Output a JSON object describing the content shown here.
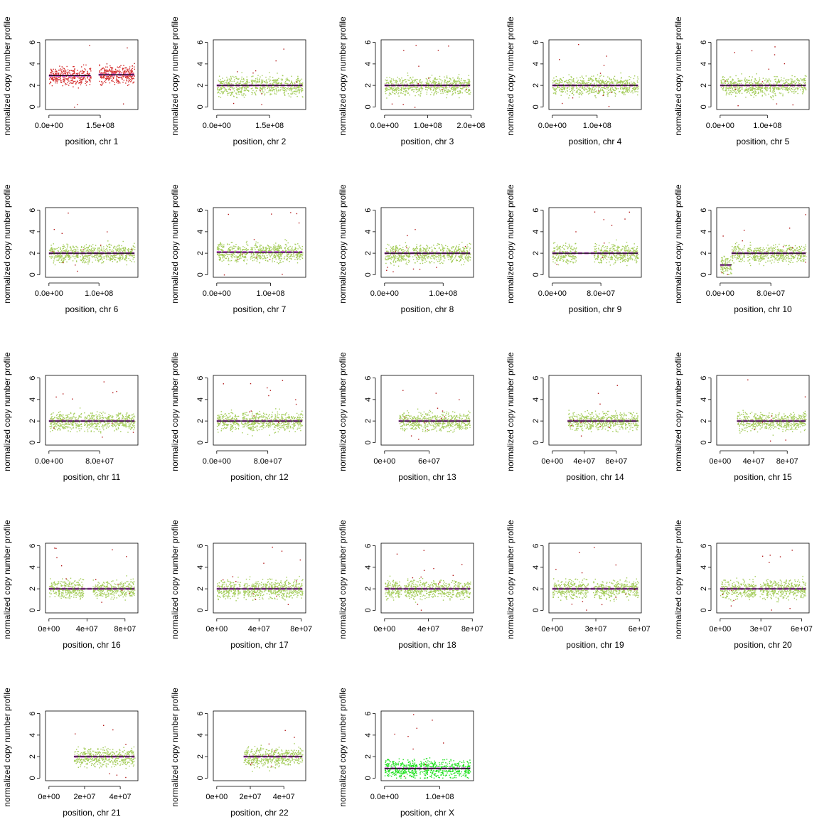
{
  "chart_data": [
    {
      "type": "scatter",
      "chromosome": "1",
      "xlabel": "position, chr 1",
      "ylabel": "normalized copy number profile",
      "xticks": [
        "0.0e+00",
        "1.5e+08"
      ],
      "xtick_values": [
        0,
        150000000
      ],
      "xlim": [
        0,
        250000000
      ],
      "ylim": [
        0,
        6
      ],
      "yticks": [
        "0",
        "2",
        "4",
        "6"
      ],
      "point_color": "#d42a2a",
      "segments": [
        {
          "start": 0,
          "end": 122000000,
          "copy_number": 2.9
        },
        {
          "start": 145000000,
          "end": 249000000,
          "copy_number": 3.0
        }
      ],
      "gaps": [
        [
          122000000,
          145000000
        ]
      ]
    },
    {
      "type": "scatter",
      "chromosome": "2",
      "xlabel": "position, chr 2",
      "ylabel": "normalized copy number profile",
      "xticks": [
        "0.0e+00",
        "1.5e+08"
      ],
      "xtick_values": [
        0,
        150000000
      ],
      "xlim": [
        0,
        243000000
      ],
      "ylim": [
        0,
        6
      ],
      "yticks": [
        "0",
        "2",
        "4",
        "6"
      ],
      "point_color": "#a4cc5a",
      "segments": [
        {
          "start": 0,
          "end": 243000000,
          "copy_number": 2.0
        }
      ],
      "gaps": [
        [
          91000000,
          96000000
        ]
      ]
    },
    {
      "type": "scatter",
      "chromosome": "3",
      "xlabel": "position, chr 3",
      "ylabel": "normalized copy number profile",
      "xticks": [
        "0.0e+00",
        "1.0e+08",
        "2.0e+08"
      ],
      "xtick_values": [
        0,
        100000000,
        200000000
      ],
      "xlim": [
        0,
        198000000
      ],
      "ylim": [
        0,
        6
      ],
      "yticks": [
        "0",
        "2",
        "4",
        "6"
      ],
      "point_color": "#a4cc5a",
      "segments": [
        {
          "start": 0,
          "end": 198000000,
          "copy_number": 2.0
        }
      ],
      "gaps": [
        [
          88000000,
          94000000
        ]
      ]
    },
    {
      "type": "scatter",
      "chromosome": "4",
      "xlabel": "position, chr 4",
      "ylabel": "normalized copy number profile",
      "xticks": [
        "0.0e+00",
        "1.0e+08"
      ],
      "xtick_values": [
        0,
        100000000
      ],
      "xlim": [
        0,
        191000000
      ],
      "ylim": [
        0,
        6
      ],
      "yticks": [
        "0",
        "2",
        "4",
        "6"
      ],
      "point_color": "#a4cc5a",
      "segments": [
        {
          "start": 0,
          "end": 191000000,
          "copy_number": 2.0
        }
      ],
      "gaps": [
        [
          48000000,
          52000000
        ]
      ]
    },
    {
      "type": "scatter",
      "chromosome": "5",
      "xlabel": "position, chr 5",
      "ylabel": "normalized copy number profile",
      "xticks": [
        "0.0e+00",
        "1.0e+08"
      ],
      "xtick_values": [
        0,
        100000000
      ],
      "xlim": [
        0,
        181000000
      ],
      "ylim": [
        0,
        6
      ],
      "yticks": [
        "0",
        "2",
        "4",
        "6"
      ],
      "point_color": "#a4cc5a",
      "segments": [
        {
          "start": 0,
          "end": 181000000,
          "copy_number": 2.0
        }
      ],
      "gaps": [
        [
          46000000,
          50000000
        ]
      ]
    },
    {
      "type": "scatter",
      "chromosome": "6",
      "xlabel": "position, chr 6",
      "ylabel": "normalized copy number profile",
      "xticks": [
        "0.0e+00",
        "1.0e+08"
      ],
      "xtick_values": [
        0,
        100000000
      ],
      "xlim": [
        0,
        171000000
      ],
      "ylim": [
        0,
        6
      ],
      "yticks": [
        "0",
        "2",
        "4",
        "6"
      ],
      "point_color": "#a4cc5a",
      "segments": [
        {
          "start": 0,
          "end": 171000000,
          "copy_number": 2.0
        }
      ],
      "gaps": [
        [
          58000000,
          62000000
        ]
      ]
    },
    {
      "type": "scatter",
      "chromosome": "7",
      "xlabel": "position, chr 7",
      "ylabel": "normalized copy number profile",
      "xticks": [
        "0.0e+00",
        "1.0e+08"
      ],
      "xtick_values": [
        0,
        100000000
      ],
      "xlim": [
        0,
        159000000
      ],
      "ylim": [
        0,
        6
      ],
      "yticks": [
        "0",
        "2",
        "4",
        "6"
      ],
      "point_color": "#a4cc5a",
      "segments": [
        {
          "start": 0,
          "end": 159000000,
          "copy_number": 2.1
        }
      ],
      "gaps": [
        [
          58000000,
          62000000
        ]
      ]
    },
    {
      "type": "scatter",
      "chromosome": "8",
      "xlabel": "position, chr 8",
      "ylabel": "normalized copy number profile",
      "xticks": [
        "0.0e+00",
        "1.0e+08"
      ],
      "xtick_values": [
        0,
        100000000
      ],
      "xlim": [
        0,
        146000000
      ],
      "ylim": [
        0,
        6
      ],
      "yticks": [
        "0",
        "2",
        "4",
        "6"
      ],
      "point_color": "#a4cc5a",
      "segments": [
        {
          "start": 0,
          "end": 146000000,
          "copy_number": 2.0
        }
      ],
      "gaps": [
        [
          43000000,
          47000000
        ]
      ]
    },
    {
      "type": "scatter",
      "chromosome": "9",
      "xlabel": "position, chr 9",
      "ylabel": "normalized copy number profile",
      "xticks": [
        "0.0e+00",
        "8.0e+07"
      ],
      "xtick_values": [
        0,
        80000000
      ],
      "xlim": [
        0,
        141000000
      ],
      "ylim": [
        0,
        6
      ],
      "yticks": [
        "0",
        "2",
        "4",
        "6"
      ],
      "point_color": "#a4cc5a",
      "segments": [
        {
          "start": 0,
          "end": 141000000,
          "copy_number": 2.0
        }
      ],
      "gaps": [
        [
          39000000,
          68000000
        ]
      ]
    },
    {
      "type": "scatter",
      "chromosome": "10",
      "xlabel": "position, chr 10",
      "ylabel": "normalized copy number profile",
      "xticks": [
        "0.0e+00",
        "8.0e+07"
      ],
      "xtick_values": [
        0,
        80000000
      ],
      "xlim": [
        0,
        135000000
      ],
      "ylim": [
        0,
        6
      ],
      "yticks": [
        "0",
        "2",
        "4",
        "6"
      ],
      "point_color": "#a4cc5a",
      "segments": [
        {
          "start": 0,
          "end": 18000000,
          "copy_number": 0.9
        },
        {
          "start": 18000000,
          "end": 135000000,
          "copy_number": 2.0
        }
      ],
      "gaps": [
        [
          38000000,
          42000000
        ]
      ]
    },
    {
      "type": "scatter",
      "chromosome": "11",
      "xlabel": "position, chr 11",
      "ylabel": "normalized copy number profile",
      "xticks": [
        "0.0e+00",
        "8.0e+07"
      ],
      "xtick_values": [
        0,
        80000000
      ],
      "xlim": [
        0,
        135000000
      ],
      "ylim": [
        0,
        6
      ],
      "yticks": [
        "0",
        "2",
        "4",
        "6"
      ],
      "point_color": "#a4cc5a",
      "segments": [
        {
          "start": 0,
          "end": 135000000,
          "copy_number": 2.0
        }
      ],
      "gaps": [
        [
          51000000,
          55000000
        ]
      ]
    },
    {
      "type": "scatter",
      "chromosome": "12",
      "xlabel": "position, chr 12",
      "ylabel": "normalized copy number profile",
      "xticks": [
        "0.0e+00",
        "8.0e+07"
      ],
      "xtick_values": [
        0,
        80000000
      ],
      "xlim": [
        0,
        134000000
      ],
      "ylim": [
        0,
        6
      ],
      "yticks": [
        "0",
        "2",
        "4",
        "6"
      ],
      "point_color": "#a4cc5a",
      "segments": [
        {
          "start": 0,
          "end": 134000000,
          "copy_number": 2.0
        }
      ],
      "gaps": [
        [
          34000000,
          38000000
        ]
      ]
    },
    {
      "type": "scatter",
      "chromosome": "13",
      "xlabel": "position, chr 13",
      "ylabel": "normalized copy number profile",
      "xticks": [
        "0e+00",
        "6e+07"
      ],
      "xtick_values": [
        0,
        60000000
      ],
      "xlim": [
        0,
        115000000
      ],
      "ylim": [
        0,
        6
      ],
      "yticks": [
        "0",
        "2",
        "4",
        "6"
      ],
      "point_color": "#a4cc5a",
      "segments": [
        {
          "start": 19000000,
          "end": 115000000,
          "copy_number": 2.0
        }
      ],
      "gaps": [
        [
          0,
          19000000
        ]
      ]
    },
    {
      "type": "scatter",
      "chromosome": "14",
      "xlabel": "position, chr 14",
      "ylabel": "normalized copy number profile",
      "xticks": [
        "0e+00",
        "4e+07",
        "8e+07"
      ],
      "xtick_values": [
        0,
        40000000,
        80000000
      ],
      "xlim": [
        0,
        107000000
      ],
      "ylim": [
        0,
        6
      ],
      "yticks": [
        "0",
        "2",
        "4",
        "6"
      ],
      "point_color": "#a4cc5a",
      "segments": [
        {
          "start": 19000000,
          "end": 107000000,
          "copy_number": 2.0
        }
      ],
      "gaps": [
        [
          0,
          19000000
        ]
      ]
    },
    {
      "type": "scatter",
      "chromosome": "15",
      "xlabel": "position, chr 15",
      "ylabel": "normalized copy number profile",
      "xticks": [
        "0e+00",
        "4e+07",
        "8e+07"
      ],
      "xtick_values": [
        0,
        40000000,
        80000000
      ],
      "xlim": [
        0,
        102000000
      ],
      "ylim": [
        0,
        6
      ],
      "yticks": [
        "0",
        "2",
        "4",
        "6"
      ],
      "point_color": "#a4cc5a",
      "segments": [
        {
          "start": 20000000,
          "end": 102000000,
          "copy_number": 2.0
        }
      ],
      "gaps": [
        [
          0,
          20000000
        ]
      ]
    },
    {
      "type": "scatter",
      "chromosome": "16",
      "xlabel": "position, chr 16",
      "ylabel": "normalized copy number profile",
      "xticks": [
        "0e+00",
        "4e+07",
        "8e+07"
      ],
      "xtick_values": [
        0,
        40000000,
        80000000
      ],
      "xlim": [
        0,
        90000000
      ],
      "ylim": [
        0,
        6
      ],
      "yticks": [
        "0",
        "2",
        "4",
        "6"
      ],
      "point_color": "#a4cc5a",
      "segments": [
        {
          "start": 0,
          "end": 90000000,
          "copy_number": 2.0
        }
      ],
      "gaps": [
        [
          36000000,
          46000000
        ]
      ]
    },
    {
      "type": "scatter",
      "chromosome": "17",
      "xlabel": "position, chr 17",
      "ylabel": "normalized copy number profile",
      "xticks": [
        "0e+00",
        "4e+07",
        "8e+07"
      ],
      "xtick_values": [
        0,
        40000000,
        80000000
      ],
      "xlim": [
        0,
        81000000
      ],
      "ylim": [
        0,
        6
      ],
      "yticks": [
        "0",
        "2",
        "4",
        "6"
      ],
      "point_color": "#a4cc5a",
      "segments": [
        {
          "start": 0,
          "end": 81000000,
          "copy_number": 2.0
        }
      ],
      "gaps": [
        [
          22000000,
          25000000
        ]
      ]
    },
    {
      "type": "scatter",
      "chromosome": "18",
      "xlabel": "position, chr 18",
      "ylabel": "normalized copy number profile",
      "xticks": [
        "0e+00",
        "4e+07",
        "8e+07"
      ],
      "xtick_values": [
        0,
        40000000,
        80000000
      ],
      "xlim": [
        0,
        78000000
      ],
      "ylim": [
        0,
        6
      ],
      "yticks": [
        "0",
        "2",
        "4",
        "6"
      ],
      "point_color": "#a4cc5a",
      "segments": [
        {
          "start": 0,
          "end": 78000000,
          "copy_number": 2.0
        }
      ],
      "gaps": [
        [
          15000000,
          18000000
        ]
      ]
    },
    {
      "type": "scatter",
      "chromosome": "19",
      "xlabel": "position, chr 19",
      "ylabel": "normalized copy number profile",
      "xticks": [
        "0e+00",
        "3e+07",
        "6e+07"
      ],
      "xtick_values": [
        0,
        30000000,
        60000000
      ],
      "xlim": [
        0,
        59000000
      ],
      "ylim": [
        0,
        6
      ],
      "yticks": [
        "0",
        "2",
        "4",
        "6"
      ],
      "point_color": "#a4cc5a",
      "segments": [
        {
          "start": 0,
          "end": 59000000,
          "copy_number": 2.0
        }
      ],
      "gaps": [
        [
          24500000,
          28000000
        ]
      ]
    },
    {
      "type": "scatter",
      "chromosome": "20",
      "xlabel": "position, chr 20",
      "ylabel": "normalized copy number profile",
      "xticks": [
        "0e+00",
        "3e+07",
        "6e+07"
      ],
      "xtick_values": [
        0,
        30000000,
        60000000
      ],
      "xlim": [
        0,
        63000000
      ],
      "ylim": [
        0,
        6
      ],
      "yticks": [
        "0",
        "2",
        "4",
        "6"
      ],
      "point_color": "#a4cc5a",
      "segments": [
        {
          "start": 0,
          "end": 63000000,
          "copy_number": 2.0
        }
      ],
      "gaps": [
        [
          26000000,
          29000000
        ]
      ]
    },
    {
      "type": "scatter",
      "chromosome": "21",
      "xlabel": "position, chr 21",
      "ylabel": "normalized copy number profile",
      "xticks": [
        "0e+00",
        "2e+07",
        "4e+07"
      ],
      "xtick_values": [
        0,
        20000000,
        40000000
      ],
      "xlim": [
        0,
        48000000
      ],
      "ylim": [
        0,
        6
      ],
      "yticks": [
        "0",
        "2",
        "4",
        "6"
      ],
      "point_color": "#a4cc5a",
      "segments": [
        {
          "start": 14000000,
          "end": 48000000,
          "copy_number": 2.0
        }
      ],
      "gaps": [
        [
          0,
          14000000
        ]
      ]
    },
    {
      "type": "scatter",
      "chromosome": "22",
      "xlabel": "position, chr 22",
      "ylabel": "normalized copy number profile",
      "xticks": [
        "0e+00",
        "2e+07",
        "4e+07"
      ],
      "xtick_values": [
        0,
        20000000,
        40000000
      ],
      "xlim": [
        0,
        51000000
      ],
      "ylim": [
        0,
        6
      ],
      "yticks": [
        "0",
        "2",
        "4",
        "6"
      ],
      "point_color": "#a4cc5a",
      "segments": [
        {
          "start": 16000000,
          "end": 51000000,
          "copy_number": 2.0
        }
      ],
      "gaps": [
        [
          0,
          16000000
        ]
      ]
    },
    {
      "type": "scatter",
      "chromosome": "X",
      "xlabel": "position, chr X",
      "ylabel": "normalized copy number profile",
      "xticks": [
        "0.0e+00",
        "1.0e+08"
      ],
      "xtick_values": [
        0,
        100000000
      ],
      "xlim": [
        0,
        155000000
      ],
      "ylim": [
        0,
        6
      ],
      "yticks": [
        "0",
        "2",
        "4",
        "6"
      ],
      "point_color": "#1ee01e",
      "segments": [
        {
          "start": 0,
          "end": 155000000,
          "copy_number": 0.9
        }
      ],
      "gaps": [
        [
          58000000,
          62000000
        ]
      ]
    }
  ],
  "colors": {
    "median_line": "#000000",
    "smoothed_profile": "#e066ee",
    "outlier_points": "#b31b1b"
  }
}
